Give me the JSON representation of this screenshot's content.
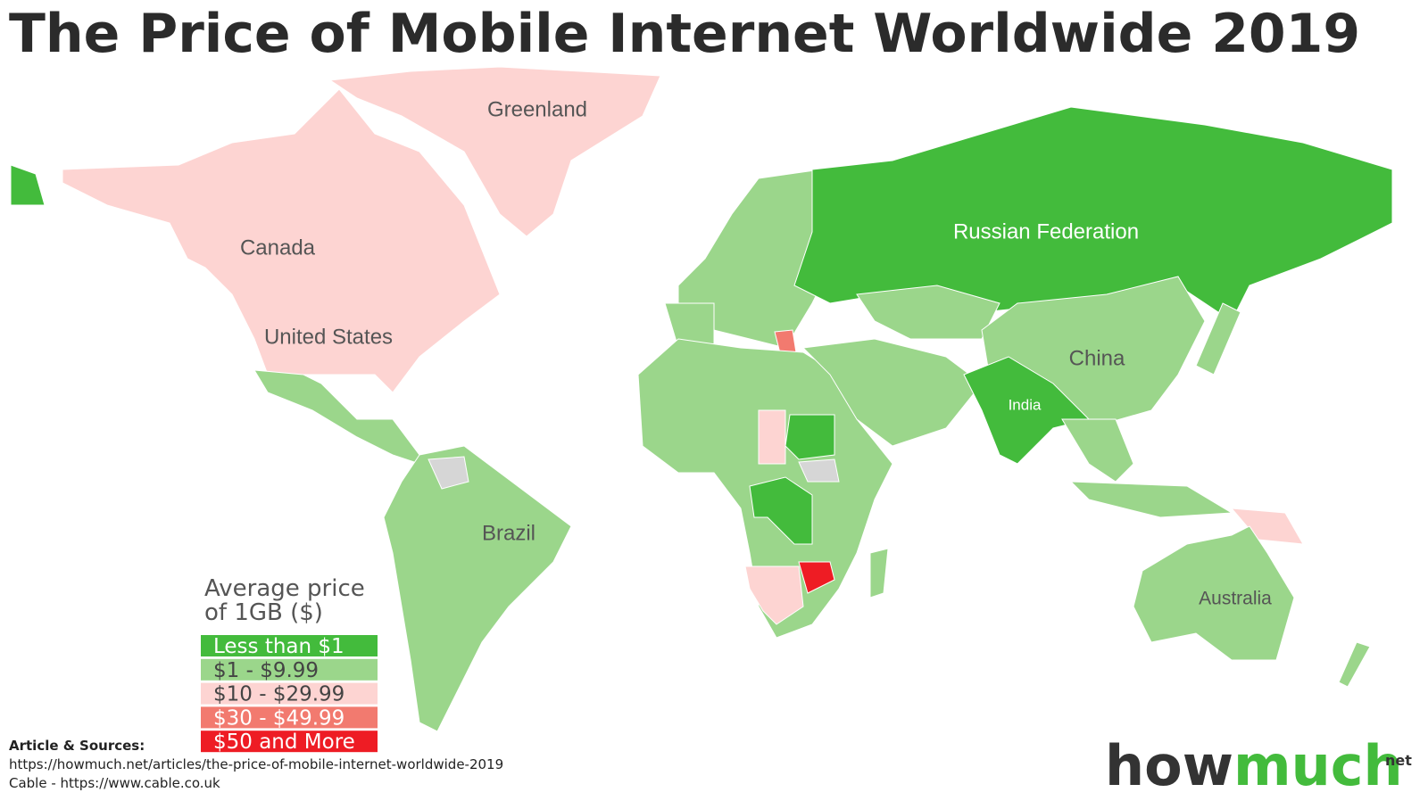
{
  "title": "The Price of Mobile Internet Worldwide 2019",
  "map_labels": [
    "Greenland",
    "Canada",
    "United States",
    "Russian Federation",
    "China",
    "India",
    "Brazil",
    "Australia"
  ],
  "legend": {
    "title_lines": [
      "Average price",
      "of 1GB ($)"
    ],
    "bins": [
      {
        "label": "Less than $1",
        "color": "#43bb3c"
      },
      {
        "label": "$1 - $9.99",
        "color": "#9bd68b"
      },
      {
        "label": "$10 - $29.99",
        "color": "#fdd4d2"
      },
      {
        "label": "$30 - $49.99",
        "color": "#f27a6f"
      },
      {
        "label": "$50 and More",
        "color": "#ee1c24"
      }
    ]
  },
  "sources": {
    "heading": "Article & Sources:",
    "lines": [
      "https://howmuch.net/articles/the-price-of-mobile-internet-worldwide-2019",
      "Cable - https://www.cable.co.uk"
    ]
  },
  "logo": {
    "how": "how",
    "much": "much",
    "suffix": "net"
  }
}
